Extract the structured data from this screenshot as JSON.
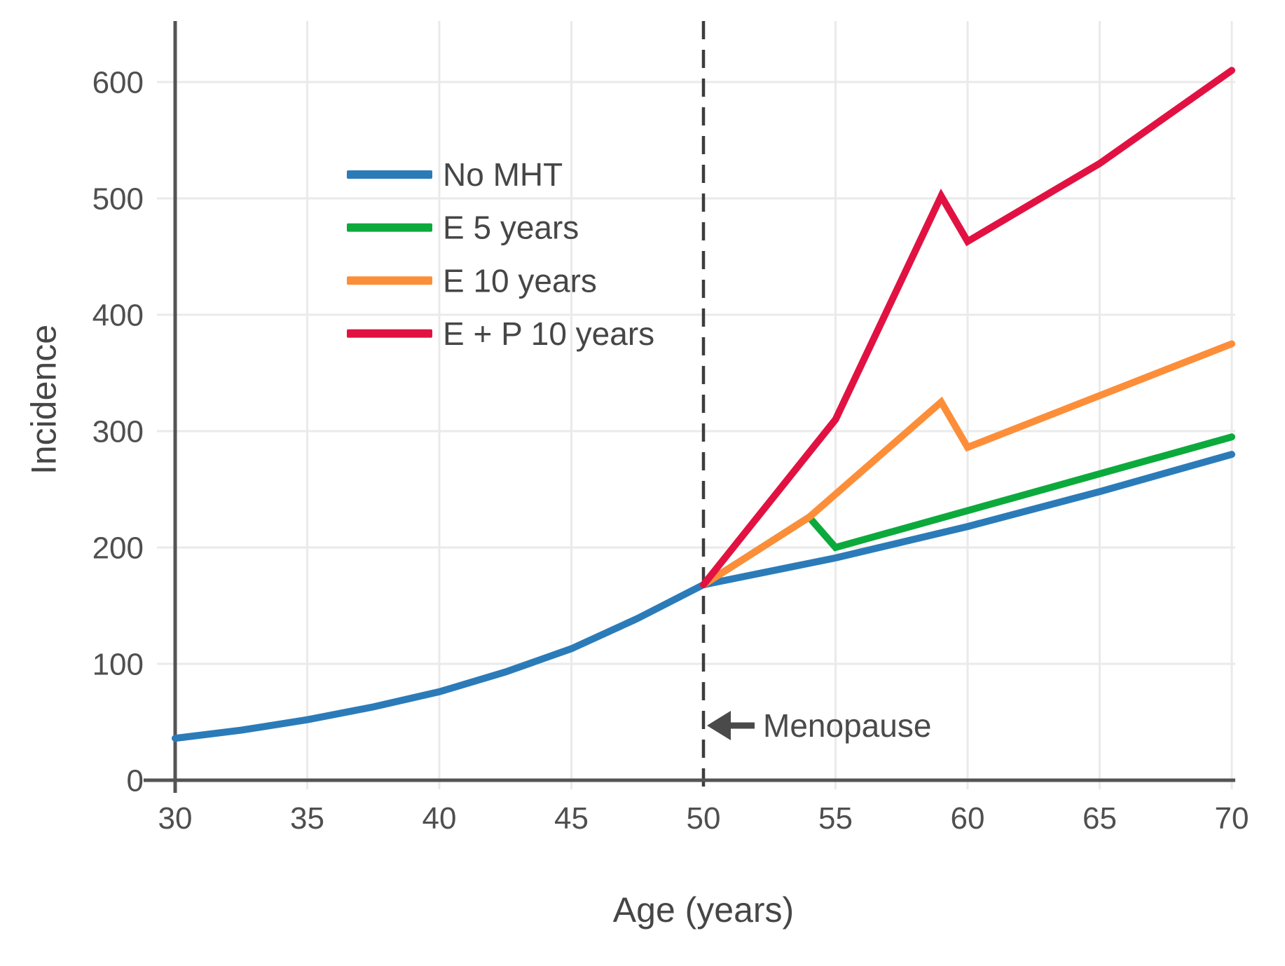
{
  "chart_data": {
    "type": "line",
    "title": "",
    "xlabel": "Age (years)",
    "ylabel": "Incidence",
    "xlim": [
      30,
      70
    ],
    "ylim": [
      0,
      650
    ],
    "xticks": [
      30,
      35,
      40,
      45,
      50,
      55,
      60,
      65,
      70
    ],
    "yticks": [
      0,
      100,
      200,
      300,
      400,
      500,
      600
    ],
    "grid": true,
    "legend_position": "upper-left-inside",
    "vline": {
      "x": 50,
      "style": "dashed",
      "color": "#3d3d3d"
    },
    "annotation": {
      "text": "Menopause",
      "arrow": "left",
      "x": 50,
      "y": 47
    },
    "series": [
      {
        "name": "No MHT",
        "color": "#2b7bb9",
        "points": [
          [
            30,
            36
          ],
          [
            32.5,
            43
          ],
          [
            35,
            52
          ],
          [
            37.5,
            63
          ],
          [
            40,
            76
          ],
          [
            42.5,
            93
          ],
          [
            45,
            113
          ],
          [
            47.5,
            139
          ],
          [
            50,
            168
          ],
          [
            55,
            191
          ],
          [
            60,
            218
          ],
          [
            65,
            248
          ],
          [
            70,
            280
          ]
        ]
      },
      {
        "name": "E 5 years",
        "color": "#0caa3c",
        "points": [
          [
            50,
            168
          ],
          [
            54,
            226
          ],
          [
            55,
            200
          ],
          [
            70,
            295
          ]
        ]
      },
      {
        "name": "E 10 years",
        "color": "#fd8e39",
        "points": [
          [
            50,
            168
          ],
          [
            54,
            226
          ],
          [
            59,
            325
          ],
          [
            60,
            286
          ],
          [
            70,
            375
          ]
        ]
      },
      {
        "name": "E + P 10 years",
        "color": "#e11242",
        "points": [
          [
            50,
            168
          ],
          [
            55,
            310
          ],
          [
            59,
            502
          ],
          [
            60,
            463
          ],
          [
            65,
            530
          ],
          [
            70,
            610
          ]
        ]
      }
    ],
    "colors": {
      "grid": "#eaeaea",
      "axis": "#545454",
      "tick_text": "#4f4f4f",
      "label_text": "#464646",
      "annotation": "#4a4a4a"
    }
  }
}
